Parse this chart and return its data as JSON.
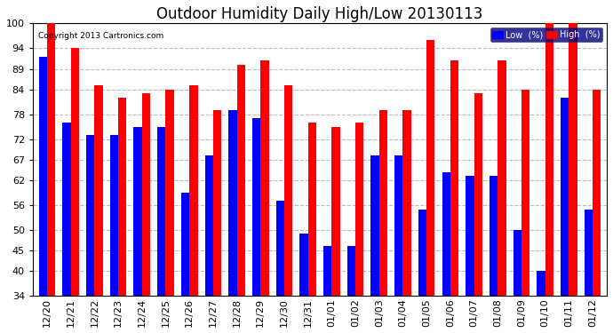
{
  "title": "Outdoor Humidity Daily High/Low 20130113",
  "copyright": "Copyright 2013 Cartronics.com",
  "categories": [
    "12/20",
    "12/21",
    "12/22",
    "12/23",
    "12/24",
    "12/25",
    "12/26",
    "12/27",
    "12/28",
    "12/29",
    "12/30",
    "12/31",
    "01/01",
    "01/02",
    "01/03",
    "01/04",
    "01/05",
    "01/06",
    "01/07",
    "01/08",
    "01/09",
    "01/10",
    "01/11",
    "01/12"
  ],
  "high": [
    100,
    94,
    85,
    82,
    83,
    84,
    85,
    79,
    90,
    91,
    85,
    76,
    75,
    76,
    79,
    79,
    96,
    91,
    83,
    91,
    84,
    100,
    100,
    84
  ],
  "low": [
    92,
    76,
    73,
    73,
    75,
    75,
    59,
    68,
    79,
    77,
    57,
    49,
    46,
    46,
    68,
    68,
    55,
    64,
    63,
    63,
    50,
    40,
    82,
    55
  ],
  "ymin": 34,
  "ymax": 100,
  "yticks": [
    34,
    40,
    45,
    50,
    56,
    62,
    67,
    72,
    78,
    84,
    89,
    94,
    100
  ],
  "bar_width": 0.35,
  "high_color": "#ff0000",
  "low_color": "#0000ff",
  "bg_color": "#ffffff",
  "grid_color": "#bbbbbb",
  "title_fontsize": 12,
  "tick_fontsize": 8,
  "legend_low_label": "Low  (%)",
  "legend_high_label": "High  (%)"
}
